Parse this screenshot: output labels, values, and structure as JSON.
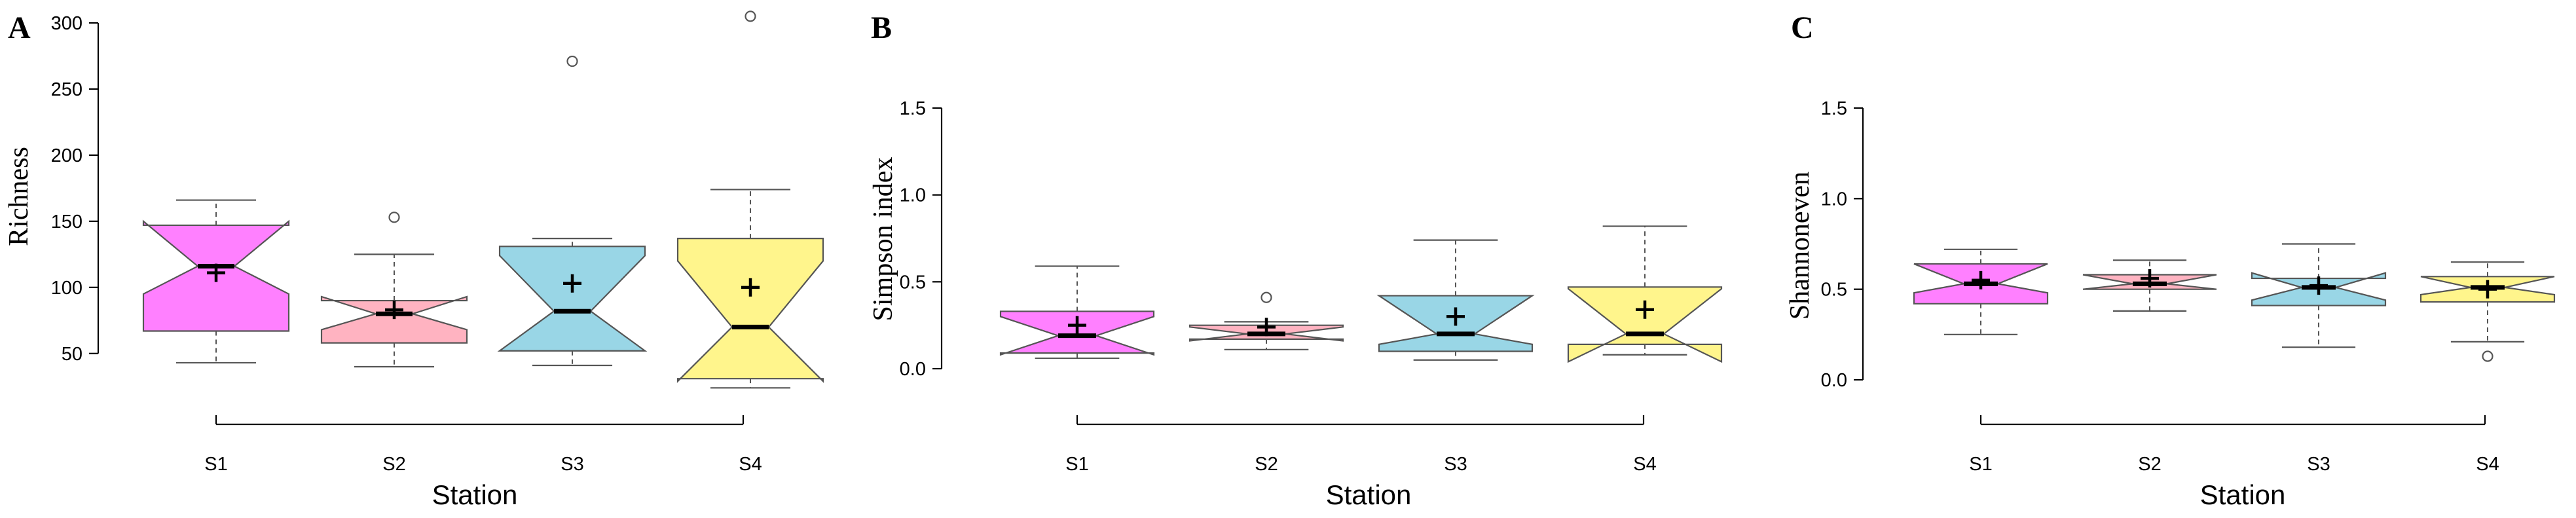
{
  "chart_data": [
    {
      "type": "boxplot",
      "panel_label": "A",
      "xlabel": "Station",
      "ylabel": "Richness",
      "ylim": [
        40,
        300
      ],
      "yticks": [
        "50",
        "100",
        "150",
        "200",
        "250",
        "300"
      ],
      "notched": true,
      "categories": [
        "S1",
        "S2",
        "S3",
        "S4"
      ],
      "colors": [
        "#ff80ff",
        "#ffb3c1",
        "#99d6e6",
        "#fff58c"
      ],
      "stats": [
        {
          "whisker_low": 43,
          "q1": 67,
          "median": 116,
          "q3": 147,
          "whisker_high": 166,
          "notch_low": 95,
          "notch_high": 150,
          "mean": 111,
          "outliers": []
        },
        {
          "whisker_low": 40,
          "q1": 58,
          "median": 80,
          "q3": 90,
          "whisker_high": 125,
          "notch_low": 68,
          "notch_high": 93,
          "mean": 83,
          "outliers": [
            153
          ]
        },
        {
          "whisker_low": 41,
          "q1": 52,
          "median": 82,
          "q3": 131,
          "whisker_high": 137,
          "notch_low": 52,
          "notch_high": 124,
          "mean": 103,
          "outliers": [
            271
          ]
        },
        {
          "whisker_low": 24,
          "q1": 31,
          "median": 70,
          "q3": 137,
          "whisker_high": 174,
          "notch_low": 29,
          "notch_high": 120,
          "mean": 100,
          "outliers": [
            305
          ]
        }
      ]
    },
    {
      "type": "boxplot",
      "panel_label": "B",
      "xlabel": "Station",
      "ylabel": "Simpson index",
      "ylim": [
        0,
        1.5
      ],
      "yticks": [
        "0.0",
        "0.5",
        "1.0",
        "1.5"
      ],
      "notched": true,
      "categories": [
        "S1",
        "S2",
        "S3",
        "S4"
      ],
      "colors": [
        "#ff80ff",
        "#ffb3c1",
        "#99d6e6",
        "#fff58c"
      ],
      "stats": [
        {
          "whisker_low": 0.06,
          "q1": 0.09,
          "median": 0.19,
          "q3": 0.33,
          "whisker_high": 0.59,
          "notch_low": 0.08,
          "notch_high": 0.3,
          "mean": 0.25,
          "outliers": []
        },
        {
          "whisker_low": 0.11,
          "q1": 0.17,
          "median": 0.2,
          "q3": 0.25,
          "whisker_high": 0.27,
          "notch_low": 0.16,
          "notch_high": 0.24,
          "mean": 0.24,
          "outliers": [
            0.41
          ]
        },
        {
          "whisker_low": 0.05,
          "q1": 0.1,
          "median": 0.2,
          "q3": 0.42,
          "whisker_high": 0.74,
          "notch_low": 0.14,
          "notch_high": 0.42,
          "mean": 0.3,
          "outliers": []
        },
        {
          "whisker_low": 0.08,
          "q1": 0.14,
          "median": 0.2,
          "q3": 0.47,
          "whisker_high": 0.82,
          "notch_low": 0.04,
          "notch_high": 0.46,
          "mean": 0.34,
          "outliers": []
        }
      ]
    },
    {
      "type": "boxplot",
      "panel_label": "C",
      "xlabel": "Station",
      "ylabel": "Shannoneven",
      "ylim": [
        0,
        1.5
      ],
      "yticks": [
        "0.0",
        "0.5",
        "1.0",
        "1.5"
      ],
      "notched": true,
      "categories": [
        "S1",
        "S2",
        "S3",
        "S4"
      ],
      "colors": [
        "#ff80ff",
        "#ffb3c1",
        "#99d6e6",
        "#fff58c"
      ],
      "stats": [
        {
          "whisker_low": 0.25,
          "q1": 0.42,
          "median": 0.53,
          "q3": 0.64,
          "whisker_high": 0.72,
          "notch_low": 0.48,
          "notch_high": 0.64,
          "mean": 0.55,
          "outliers": []
        },
        {
          "whisker_low": 0.38,
          "q1": 0.5,
          "median": 0.53,
          "q3": 0.58,
          "whisker_high": 0.66,
          "notch_low": 0.5,
          "notch_high": 0.58,
          "mean": 0.56,
          "outliers": []
        },
        {
          "whisker_low": 0.18,
          "q1": 0.41,
          "median": 0.51,
          "q3": 0.56,
          "whisker_high": 0.75,
          "notch_low": 0.44,
          "notch_high": 0.59,
          "mean": 0.52,
          "outliers": []
        },
        {
          "whisker_low": 0.21,
          "q1": 0.43,
          "median": 0.51,
          "q3": 0.57,
          "whisker_high": 0.65,
          "notch_low": 0.47,
          "notch_high": 0.57,
          "mean": 0.5,
          "outliers": [
            0.13
          ]
        }
      ]
    }
  ]
}
